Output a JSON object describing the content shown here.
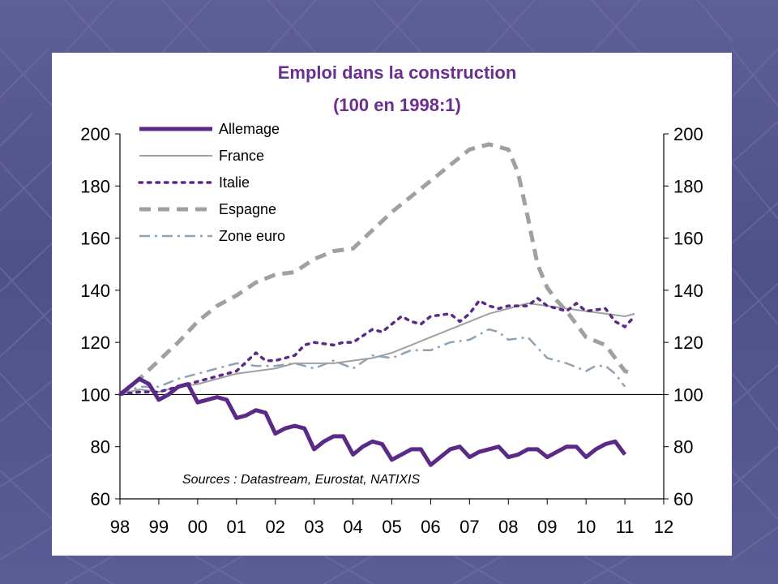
{
  "chart_data": {
    "type": "line",
    "title": "Emploi dans la construction",
    "subtitle": "(100 en 1998:1)",
    "source_note": "Sources : Datastream, Eurostat, NATIXIS",
    "x_tick_labels": [
      "98",
      "99",
      "00",
      "01",
      "02",
      "03",
      "04",
      "05",
      "06",
      "07",
      "08",
      "09",
      "10",
      "11",
      "12"
    ],
    "y_tick_labels": [
      "60",
      "80",
      "100",
      "120",
      "140",
      "160",
      "180",
      "200"
    ],
    "ylim": [
      60,
      200
    ],
    "xlim": [
      1998,
      2012
    ],
    "reference_line": 100,
    "legend_position": "top-left",
    "grid": false,
    "series": [
      {
        "name": "Allemage",
        "color": "#5b2a86",
        "dash": "solid",
        "width": 5,
        "points": [
          [
            1998.0,
            100
          ],
          [
            1998.25,
            103
          ],
          [
            1998.5,
            106
          ],
          [
            1998.75,
            104
          ],
          [
            1999.0,
            98
          ],
          [
            1999.25,
            100
          ],
          [
            1999.5,
            103
          ],
          [
            1999.75,
            104
          ],
          [
            2000.0,
            97
          ],
          [
            2000.25,
            98
          ],
          [
            2000.5,
            99
          ],
          [
            2000.75,
            98
          ],
          [
            2001.0,
            91
          ],
          [
            2001.25,
            92
          ],
          [
            2001.5,
            94
          ],
          [
            2001.75,
            93
          ],
          [
            2002.0,
            85
          ],
          [
            2002.25,
            87
          ],
          [
            2002.5,
            88
          ],
          [
            2002.75,
            87
          ],
          [
            2003.0,
            79
          ],
          [
            2003.25,
            82
          ],
          [
            2003.5,
            84
          ],
          [
            2003.75,
            84
          ],
          [
            2004.0,
            77
          ],
          [
            2004.25,
            80
          ],
          [
            2004.5,
            82
          ],
          [
            2004.75,
            81
          ],
          [
            2005.0,
            75
          ],
          [
            2005.25,
            77
          ],
          [
            2005.5,
            79
          ],
          [
            2005.75,
            79
          ],
          [
            2006.0,
            73
          ],
          [
            2006.25,
            76
          ],
          [
            2006.5,
            79
          ],
          [
            2006.75,
            80
          ],
          [
            2007.0,
            76
          ],
          [
            2007.25,
            78
          ],
          [
            2007.5,
            79
          ],
          [
            2007.75,
            80
          ],
          [
            2008.0,
            76
          ],
          [
            2008.25,
            77
          ],
          [
            2008.5,
            79
          ],
          [
            2008.75,
            79
          ],
          [
            2009.0,
            76
          ],
          [
            2009.25,
            78
          ],
          [
            2009.5,
            80
          ],
          [
            2009.75,
            80
          ],
          [
            2010.0,
            76
          ],
          [
            2010.25,
            79
          ],
          [
            2010.5,
            81
          ],
          [
            2010.75,
            82
          ],
          [
            2011.0,
            77
          ]
        ]
      },
      {
        "name": "France",
        "color": "#a0a0a0",
        "dash": "solid",
        "width": 2,
        "points": [
          [
            1998.0,
            100
          ],
          [
            1998.5,
            102
          ],
          [
            1999.0,
            101
          ],
          [
            1999.5,
            103
          ],
          [
            2000.0,
            104
          ],
          [
            2000.5,
            106
          ],
          [
            2001.0,
            108
          ],
          [
            2001.5,
            109
          ],
          [
            2002.0,
            110
          ],
          [
            2002.5,
            112
          ],
          [
            2003.0,
            112
          ],
          [
            2003.5,
            112
          ],
          [
            2004.0,
            113
          ],
          [
            2004.5,
            114
          ],
          [
            2005.0,
            116
          ],
          [
            2005.5,
            119
          ],
          [
            2006.0,
            122
          ],
          [
            2006.5,
            125
          ],
          [
            2007.0,
            128
          ],
          [
            2007.5,
            131
          ],
          [
            2008.0,
            133
          ],
          [
            2008.5,
            135
          ],
          [
            2009.0,
            134
          ],
          [
            2009.5,
            133
          ],
          [
            2010.0,
            132
          ],
          [
            2010.5,
            131
          ],
          [
            2011.0,
            130
          ],
          [
            2011.25,
            131
          ]
        ]
      },
      {
        "name": "Italie",
        "color": "#5b2a86",
        "dash": "dotted",
        "width": 3.5,
        "points": [
          [
            1998.0,
            100
          ],
          [
            1998.5,
            101
          ],
          [
            1999.0,
            101
          ],
          [
            1999.5,
            103
          ],
          [
            2000.0,
            105
          ],
          [
            2000.5,
            107
          ],
          [
            2001.0,
            109
          ],
          [
            2001.5,
            116
          ],
          [
            2001.75,
            113
          ],
          [
            2002.0,
            113
          ],
          [
            2002.5,
            115
          ],
          [
            2002.75,
            119
          ],
          [
            2003.0,
            120
          ],
          [
            2003.5,
            119
          ],
          [
            2003.75,
            120
          ],
          [
            2004.0,
            120
          ],
          [
            2004.5,
            125
          ],
          [
            2004.75,
            124
          ],
          [
            2005.0,
            127
          ],
          [
            2005.25,
            130
          ],
          [
            2005.5,
            128
          ],
          [
            2005.75,
            127
          ],
          [
            2006.0,
            130
          ],
          [
            2006.5,
            131
          ],
          [
            2006.75,
            128
          ],
          [
            2007.0,
            131
          ],
          [
            2007.25,
            136
          ],
          [
            2007.5,
            134
          ],
          [
            2007.75,
            133
          ],
          [
            2008.0,
            134
          ],
          [
            2008.5,
            134
          ],
          [
            2008.75,
            137
          ],
          [
            2009.0,
            134
          ],
          [
            2009.5,
            132
          ],
          [
            2009.75,
            135
          ],
          [
            2010.0,
            132
          ],
          [
            2010.5,
            133
          ],
          [
            2010.75,
            128
          ],
          [
            2011.0,
            126
          ],
          [
            2011.25,
            130
          ]
        ]
      },
      {
        "name": "Espagne",
        "color": "#a0a0a0",
        "dash": "dashed",
        "width": 5,
        "points": [
          [
            1998.0,
            100
          ],
          [
            1998.5,
            106
          ],
          [
            1999.0,
            113
          ],
          [
            1999.5,
            120
          ],
          [
            2000.0,
            128
          ],
          [
            2000.5,
            134
          ],
          [
            2001.0,
            138
          ],
          [
            2001.5,
            143
          ],
          [
            2002.0,
            146
          ],
          [
            2002.5,
            147
          ],
          [
            2003.0,
            152
          ],
          [
            2003.5,
            155
          ],
          [
            2004.0,
            156
          ],
          [
            2004.5,
            163
          ],
          [
            2005.0,
            170
          ],
          [
            2005.5,
            176
          ],
          [
            2006.0,
            182
          ],
          [
            2006.5,
            188
          ],
          [
            2007.0,
            194
          ],
          [
            2007.5,
            196
          ],
          [
            2008.0,
            194
          ],
          [
            2008.25,
            185
          ],
          [
            2008.5,
            168
          ],
          [
            2008.75,
            150
          ],
          [
            2009.0,
            141
          ],
          [
            2009.25,
            136
          ],
          [
            2009.5,
            132
          ],
          [
            2010.0,
            122
          ],
          [
            2010.5,
            119
          ],
          [
            2011.0,
            109
          ],
          [
            2011.25,
            108
          ]
        ]
      },
      {
        "name": "Zone euro",
        "color": "#8fa3b5",
        "dash": "dashdot",
        "width": 2.5,
        "points": [
          [
            1998.0,
            100
          ],
          [
            1998.5,
            103
          ],
          [
            1999.0,
            103
          ],
          [
            1999.5,
            106
          ],
          [
            2000.0,
            108
          ],
          [
            2000.5,
            110
          ],
          [
            2001.0,
            112
          ],
          [
            2001.5,
            111
          ],
          [
            2002.0,
            111
          ],
          [
            2002.5,
            112
          ],
          [
            2003.0,
            110
          ],
          [
            2003.5,
            113
          ],
          [
            2004.0,
            110
          ],
          [
            2004.5,
            115
          ],
          [
            2005.0,
            114
          ],
          [
            2005.5,
            117
          ],
          [
            2006.0,
            117
          ],
          [
            2006.5,
            120
          ],
          [
            2007.0,
            121
          ],
          [
            2007.5,
            125
          ],
          [
            2007.75,
            124
          ],
          [
            2008.0,
            121
          ],
          [
            2008.5,
            122
          ],
          [
            2008.75,
            118
          ],
          [
            2009.0,
            114
          ],
          [
            2009.5,
            112
          ],
          [
            2010.0,
            109
          ],
          [
            2010.25,
            111
          ],
          [
            2010.5,
            111
          ],
          [
            2010.75,
            108
          ],
          [
            2011.0,
            103
          ]
        ]
      }
    ]
  }
}
